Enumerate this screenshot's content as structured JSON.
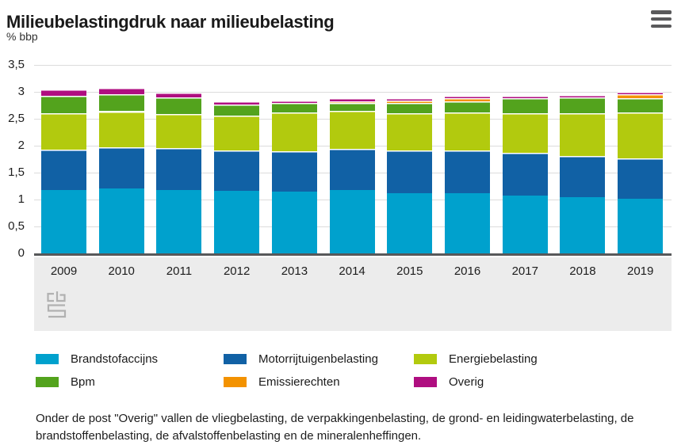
{
  "header": {
    "title": "Milieubelastingdruk naar milieubelasting"
  },
  "chart_data": {
    "type": "bar",
    "stacked": true,
    "title": "Milieubelastingdruk naar milieubelasting",
    "unit_label": "% bbp",
    "ylim": [
      0,
      3.5
    ],
    "grid": true,
    "legend_position": "bottom",
    "yticks": [
      {
        "value": 0,
        "label": "0"
      },
      {
        "value": 0.5,
        "label": "0,5"
      },
      {
        "value": 1,
        "label": "1"
      },
      {
        "value": 1.5,
        "label": "1,5"
      },
      {
        "value": 2,
        "label": "2"
      },
      {
        "value": 2.5,
        "label": "2,5"
      },
      {
        "value": 3,
        "label": "3"
      },
      {
        "value": 3.5,
        "label": "3,5"
      }
    ],
    "categories": [
      "2009",
      "2010",
      "2011",
      "2012",
      "2013",
      "2014",
      "2015",
      "2016",
      "2017",
      "2018",
      "2019"
    ],
    "series": [
      {
        "name": "Brandstofaccijns",
        "color": "#00a1cd",
        "values": [
          1.17,
          1.2,
          1.18,
          1.16,
          1.14,
          1.18,
          1.12,
          1.12,
          1.08,
          1.05,
          1.01
        ]
      },
      {
        "name": "Motorrijtuigenbelasting",
        "color": "#1161a5",
        "values": [
          0.75,
          0.77,
          0.77,
          0.75,
          0.76,
          0.76,
          0.79,
          0.79,
          0.79,
          0.76,
          0.75
        ]
      },
      {
        "name": "Energiebelasting",
        "color": "#b2ca0e",
        "values": [
          0.68,
          0.67,
          0.64,
          0.65,
          0.72,
          0.71,
          0.7,
          0.71,
          0.74,
          0.79,
          0.86
        ]
      },
      {
        "name": "Bpm",
        "color": "#53a31d",
        "values": [
          0.33,
          0.32,
          0.31,
          0.21,
          0.18,
          0.14,
          0.19,
          0.21,
          0.27,
          0.29,
          0.26
        ]
      },
      {
        "name": "Emissierechten",
        "color": "#f39200",
        "values": [
          0,
          0,
          0,
          0,
          0,
          0.04,
          0.04,
          0.05,
          0,
          0,
          0.07
        ]
      },
      {
        "name": "Overig",
        "color": "#af0e80",
        "values": [
          0.12,
          0.12,
          0.09,
          0.06,
          0.04,
          0.05,
          0.05,
          0.05,
          0.05,
          0.05,
          0.05
        ]
      }
    ]
  },
  "footer": {
    "note": "Onder de post \"Overig\" vallen de vliegbelasting, de verpakkingenbelasting, de grond- en leidingwaterbelasting, de brandstoffenbelasting, de afvalstoffenbelasting en de mineralenheffingen."
  },
  "branding": {
    "logo_name": "cbs-logo"
  },
  "colors": {
    "axis": "#57585a",
    "grid": "#dcdcdc",
    "band": "#ececec",
    "text": "#1a1a1a",
    "logo": "#b1b1b1"
  }
}
